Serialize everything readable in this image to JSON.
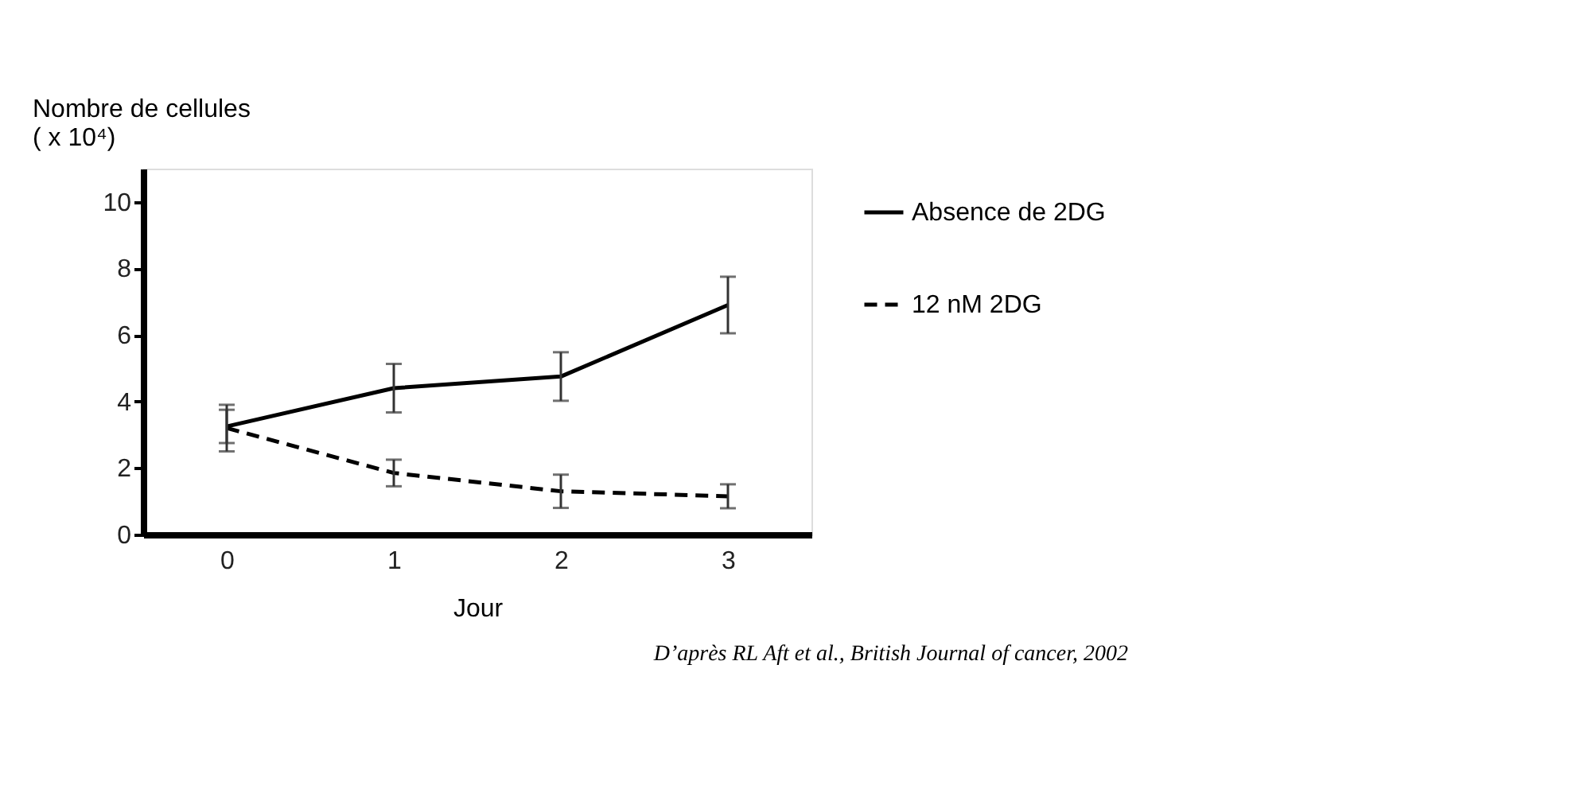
{
  "chart_data": {
    "type": "line",
    "x": [
      0,
      1,
      2,
      3
    ],
    "series": [
      {
        "name": "Absence de 2DG",
        "color": "#000000",
        "line_style": "solid",
        "values": [
          3.25,
          4.4,
          4.75,
          6.9
        ],
        "errors": [
          0.5,
          0.73,
          0.73,
          0.85
        ]
      },
      {
        "name": "12 nM 2DG",
        "color": "#000000",
        "line_style": "dashed",
        "values": [
          3.2,
          1.85,
          1.3,
          1.15
        ],
        "errors": [
          0.7,
          0.4,
          0.5,
          0.36
        ]
      }
    ],
    "xlabel": "Jour",
    "ylabel": "Nombre de cellules\n( x 10⁴)",
    "xlim": [
      -0.5,
      3.5
    ],
    "xticks": [
      0,
      1,
      2,
      3
    ],
    "ylim": [
      0,
      11
    ],
    "yticks": [
      0,
      2,
      4,
      6,
      8,
      10
    ],
    "grid": false,
    "legend": "right",
    "marker": "none",
    "annotations": [
      "D’après RL Aft et al., British Journal of cancer, 2002"
    ]
  }
}
